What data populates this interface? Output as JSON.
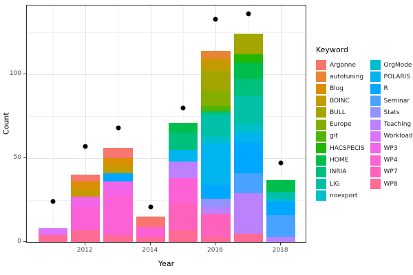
{
  "axis_titles": {
    "x": "Year",
    "y": "Count"
  },
  "legend": {
    "title": "Keyword",
    "column_split": 12
  },
  "chart_data": {
    "type": "bar",
    "stacked": true,
    "title": "",
    "xlabel": "Year",
    "ylabel": "Count",
    "xlim": [
      2010.2,
      2018.8
    ],
    "ylim": [
      0,
      141
    ],
    "x_major_ticks": [
      2012,
      2014,
      2016,
      2018
    ],
    "x_minor_gridlines": [
      2011,
      2013,
      2015,
      2017
    ],
    "y_major_ticks": [
      0,
      50,
      100
    ],
    "y_minor_gridlines": [
      25,
      75,
      125
    ],
    "bar_width_ratio": 0.9,
    "grid": true,
    "legend_position": "right",
    "legend_title": "Keyword",
    "point_color": "#000000",
    "keywords": [
      {
        "name": "Argonne",
        "color": "#F8766D"
      },
      {
        "name": "autotuning",
        "color": "#EB8335"
      },
      {
        "name": "Blog",
        "color": "#D89000"
      },
      {
        "name": "BOINC",
        "color": "#C39B00"
      },
      {
        "name": "BULL",
        "color": "#A3A500"
      },
      {
        "name": "Europe",
        "color": "#85AD00"
      },
      {
        "name": "git",
        "color": "#4FB500"
      },
      {
        "name": "HACSPECIS",
        "color": "#21B700"
      },
      {
        "name": "HOME",
        "color": "#00BE4C"
      },
      {
        "name": "INRIA",
        "color": "#00C07E"
      },
      {
        "name": "LIG",
        "color": "#00C1A8"
      },
      {
        "name": "noexport",
        "color": "#00BFC8"
      },
      {
        "name": "OrgMode",
        "color": "#00BDD0"
      },
      {
        "name": "POLARIS",
        "color": "#00B4EE"
      },
      {
        "name": "R",
        "color": "#00A7FF"
      },
      {
        "name": "Seminar",
        "color": "#4AA2FF"
      },
      {
        "name": "Stats",
        "color": "#9294FB"
      },
      {
        "name": "Teaching",
        "color": "#BC81FC"
      },
      {
        "name": "Workload",
        "color": "#DC73FA"
      },
      {
        "name": "WP3",
        "color": "#F264E8"
      },
      {
        "name": "WP4",
        "color": "#FC61D5"
      },
      {
        "name": "WP7",
        "color": "#FF62BC"
      },
      {
        "name": "WP8",
        "color": "#FF6B93"
      }
    ],
    "bars": [
      {
        "year": 2011,
        "total": 8,
        "segments": [
          [
            "WP8",
            4
          ],
          [
            "Workload",
            4
          ]
        ]
      },
      {
        "year": 2012,
        "total": 40,
        "segments": [
          [
            "WP8",
            7
          ],
          [
            "WP4",
            14
          ],
          [
            "WP3",
            6
          ],
          [
            "BOINC",
            4
          ],
          [
            "Blog",
            5
          ],
          [
            "Argonne",
            4
          ]
        ]
      },
      {
        "year": 2013,
        "total": 56,
        "segments": [
          [
            "WP8",
            4
          ],
          [
            "WP4",
            24
          ],
          [
            "WP3",
            8
          ],
          [
            "R",
            5
          ],
          [
            "BOINC",
            4
          ],
          [
            "Blog",
            5
          ],
          [
            "Argonne",
            6
          ]
        ]
      },
      {
        "year": 2014,
        "total": 15,
        "segments": [
          [
            "WP8",
            3
          ],
          [
            "WP4",
            6
          ],
          [
            "Argonne",
            6
          ]
        ]
      },
      {
        "year": 2015,
        "total": 71,
        "segments": [
          [
            "WP8",
            7
          ],
          [
            "WP7",
            16
          ],
          [
            "WP4",
            15
          ],
          [
            "Teaching",
            10
          ],
          [
            "POLARIS",
            7
          ],
          [
            "INRIA",
            10
          ],
          [
            "HOME",
            6
          ]
        ]
      },
      {
        "year": 2016,
        "total": 114,
        "segments": [
          [
            "WP8",
            3
          ],
          [
            "WP7",
            14
          ],
          [
            "Teaching",
            4
          ],
          [
            "Stats",
            5
          ],
          [
            "R",
            8
          ],
          [
            "POLARIS",
            25
          ],
          [
            "noexport",
            4
          ],
          [
            "LIG",
            13
          ],
          [
            "INRIA",
            2
          ],
          [
            "git",
            3
          ],
          [
            "Europe",
            9
          ],
          [
            "BULL",
            12
          ],
          [
            "BOINC",
            7
          ],
          [
            "autotuning",
            5
          ]
        ]
      },
      {
        "year": 2017,
        "total": 124,
        "segments": [
          [
            "WP8",
            5
          ],
          [
            "Teaching",
            24
          ],
          [
            "Seminar",
            12
          ],
          [
            "R",
            18
          ],
          [
            "POLARIS",
            6
          ],
          [
            "noexport",
            5
          ],
          [
            "LIG",
            17
          ],
          [
            "INRIA",
            10
          ],
          [
            "HOME",
            10
          ],
          [
            "HACSPECIS",
            5
          ],
          [
            "BULL",
            12
          ]
        ]
      },
      {
        "year": 2018,
        "total": 37,
        "segments": [
          [
            "Teaching",
            3
          ],
          [
            "Seminar",
            13
          ],
          [
            "R",
            8
          ],
          [
            "OrgMode",
            2
          ],
          [
            "LIG",
            4
          ],
          [
            "HOME",
            7
          ]
        ]
      }
    ],
    "points": [
      {
        "year": 2011,
        "value": 24
      },
      {
        "year": 2012,
        "value": 57
      },
      {
        "year": 2013,
        "value": 68
      },
      {
        "year": 2014,
        "value": 21
      },
      {
        "year": 2015,
        "value": 80
      },
      {
        "year": 2016,
        "value": 133
      },
      {
        "year": 2017,
        "value": 136
      },
      {
        "year": 2018,
        "value": 47
      }
    ]
  }
}
